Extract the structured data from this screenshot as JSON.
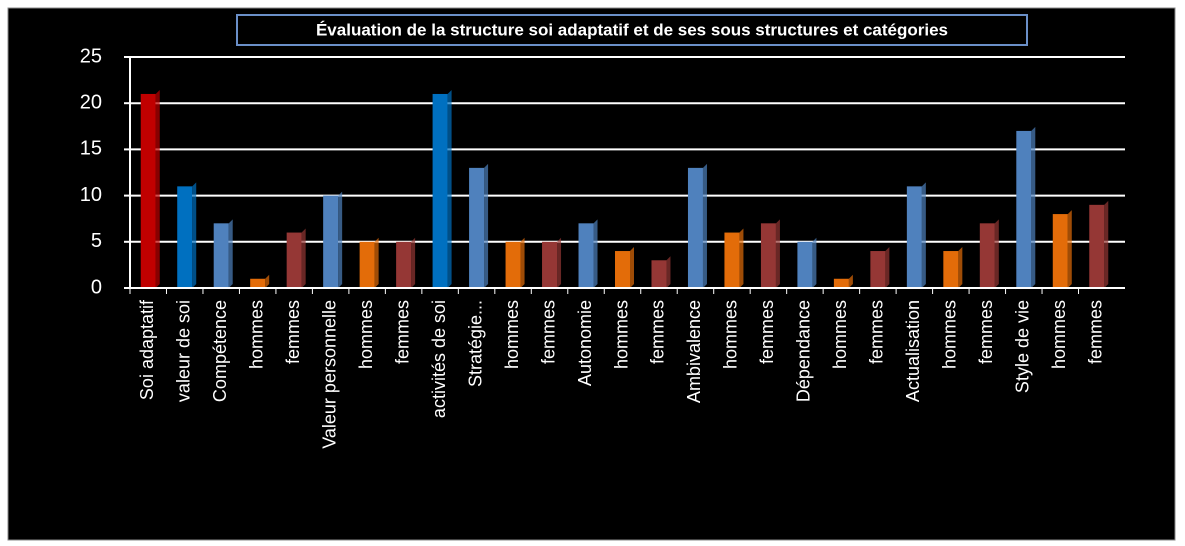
{
  "chart_data": {
    "type": "bar",
    "title": "Évaluation de la structure soi adaptatif et de ses sous structures et catégories",
    "categories": [
      "Soi adaptatif",
      "valeur de soi",
      "Compétence",
      "hommes",
      "femmes",
      "Valeur personnelle",
      "hommes",
      "femmes",
      "activités de soi",
      "Stratégie...",
      "hommes",
      "femmes",
      "Autonomie",
      "hommes",
      "femmes",
      "Ambivalence",
      "hommes",
      "femmes",
      "Dépendance",
      "hommes",
      "femmes",
      "Actualisation",
      "hommes",
      "femmes",
      "Style de vie",
      "hommes",
      "femmes"
    ],
    "values": [
      21,
      11,
      7,
      1,
      6,
      10,
      5,
      5,
      21,
      13,
      5,
      5,
      7,
      4,
      3,
      13,
      6,
      7,
      5,
      1,
      4,
      11,
      4,
      7,
      17,
      8,
      9
    ],
    "colors": [
      "#c00000",
      "#0070c0",
      "#4f81bd",
      "#e36c09",
      "#953735",
      "#4f81bd",
      "#e36c09",
      "#953735",
      "#0070c0",
      "#4f81bd",
      "#e36c09",
      "#953735",
      "#4f81bd",
      "#e36c09",
      "#953735",
      "#4f81bd",
      "#e36c09",
      "#953735",
      "#4f81bd",
      "#e36c09",
      "#953735",
      "#4f81bd",
      "#e36c09",
      "#953735",
      "#4f81bd",
      "#e36c09",
      "#953735"
    ],
    "ylim": [
      0,
      25
    ],
    "yticks": [
      0,
      5,
      10,
      15,
      20,
      25
    ],
    "grid": true
  }
}
